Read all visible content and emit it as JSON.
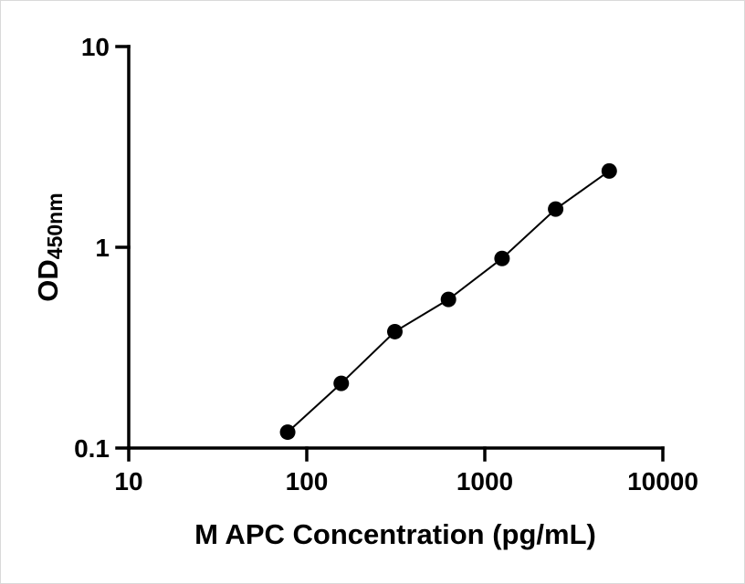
{
  "chart_data": {
    "type": "scatter",
    "title": "",
    "xlabel": "M APC Concentration (pg/mL)",
    "ylabel_base": "OD",
    "ylabel_sub": "450nm",
    "xscale": "log",
    "yscale": "log",
    "xlim": [
      10,
      10000
    ],
    "ylim": [
      0.1,
      10
    ],
    "x_ticks": [
      10,
      100,
      1000,
      10000
    ],
    "x_tick_labels": [
      "10",
      "100",
      "1000",
      "10000"
    ],
    "y_ticks": [
      0.1,
      1,
      10
    ],
    "y_tick_labels": [
      "0.1",
      "1",
      "10"
    ],
    "x": [
      78.1,
      156.2,
      312.5,
      625,
      1250,
      2500,
      5000
    ],
    "y": [
      0.12,
      0.21,
      0.38,
      0.55,
      0.88,
      1.55,
      2.4
    ],
    "grid": false,
    "legend": false,
    "line_through_points": true,
    "marker": "circle",
    "marker_color": "#000000",
    "line_color": "#000000",
    "axis_color": "#000000",
    "background_color": "#ffffff"
  }
}
